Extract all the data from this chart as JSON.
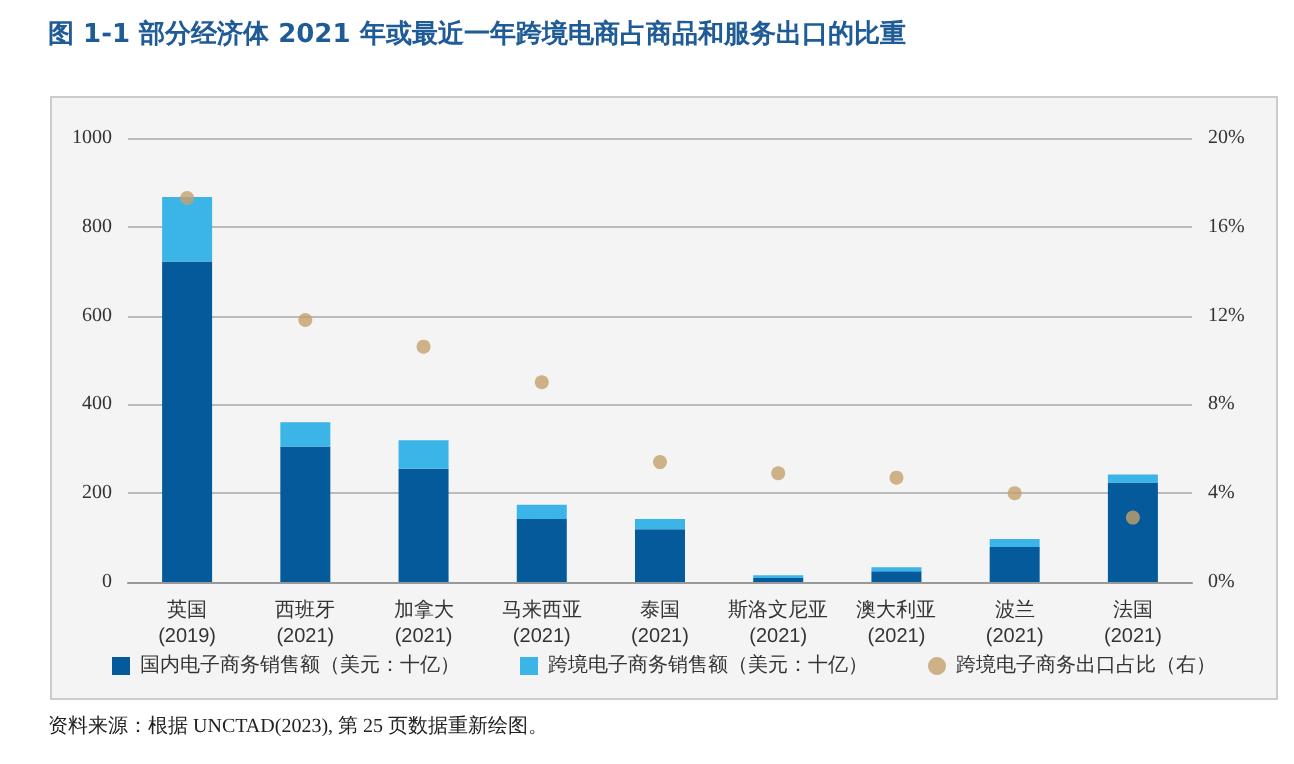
{
  "chart_data": {
    "type": "bar",
    "title": "图 1-1 部分经济体 2021 年或最近一年跨境电商占商品和服务出口的比重",
    "categories": [
      "英国\n(2019)",
      "西班牙\n(2021)",
      "加拿大\n(2021)",
      "马来西亚\n(2021)",
      "泰国\n(2021)",
      "斯洛文尼亚\n(2021)",
      "澳大利亚\n(2021)",
      "波兰\n(2021)",
      "法国\n(2021)"
    ],
    "stacked": true,
    "series": [
      {
        "name": "国内电子商务销售额（美元：十亿）",
        "color": "#045a9a",
        "values": [
          722,
          305,
          255,
          142,
          119,
          9,
          24,
          79,
          224
        ]
      },
      {
        "name": "跨境电子商务销售额（美元：十亿）",
        "color": "#3bb5e8",
        "values": [
          145,
          55,
          64,
          32,
          23,
          6,
          9,
          18,
          18
        ]
      },
      {
        "name": "跨境电子商务出口占比（右）",
        "type": "scatter",
        "axis": "y2",
        "color": "#c4a06a",
        "marker": "circle",
        "values": [
          17.3,
          11.8,
          10.6,
          9.0,
          5.4,
          4.9,
          4.7,
          4.0,
          2.9
        ]
      }
    ],
    "ylim": [
      0,
      1000
    ],
    "yticks": [
      0,
      200,
      400,
      600,
      800,
      1000
    ],
    "y2lim": [
      0,
      20
    ],
    "y2ticks": [
      {
        "value": 0,
        "label": "0%"
      },
      {
        "value": 4,
        "label": "4%"
      },
      {
        "value": 8,
        "label": "8%"
      },
      {
        "value": 12,
        "label": "12%"
      },
      {
        "value": 16,
        "label": "16%"
      },
      {
        "value": 20,
        "label": "20%"
      }
    ],
    "grid": "y",
    "legend": "bottom",
    "annotations": [
      "资料来源：根据 UNCTAD(2023), 第 25 页数据重新绘图。"
    ]
  }
}
